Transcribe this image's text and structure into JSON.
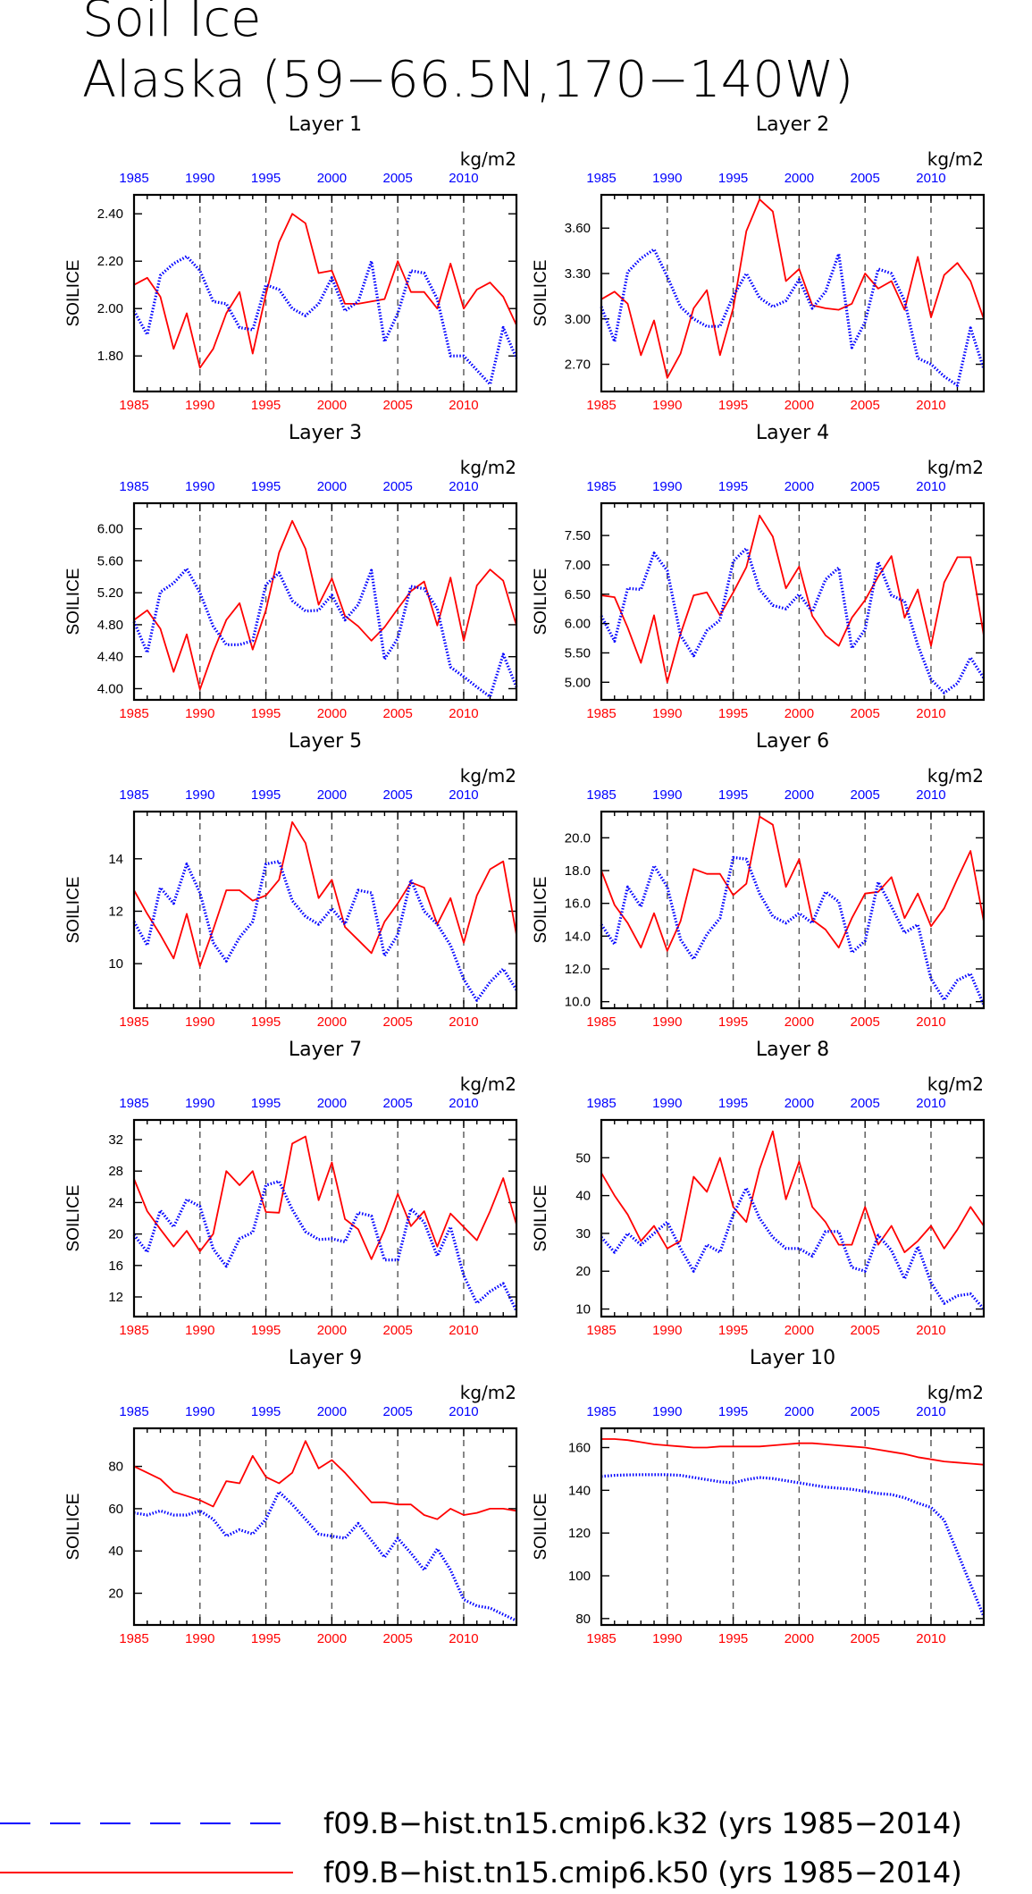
{
  "title_line1": "Soil Ice",
  "title_line2": "Alaska (59−66.5N,170−140W)",
  "colors": {
    "series_blue": "#0000ff",
    "series_red": "#ff0000",
    "axis": "#000000"
  },
  "legend": [
    {
      "label": "f09.B−hist.tn15.cmip6.k32 (yrs 1985−2014)",
      "color": "#0000ff",
      "style": "dashed"
    },
    {
      "label": "f09.B−hist.tn15.cmip6.k50 (yrs 1985−2014)",
      "color": "#ff0000",
      "style": "solid"
    }
  ],
  "chart_data": [
    {
      "type": "line",
      "title": "Layer 1",
      "ylabel": "SOILICE",
      "units": "kg/m2",
      "xlim": [
        1985,
        2014
      ],
      "ylim": [
        1.65,
        2.48
      ],
      "yticks": [
        "1.80",
        "2.00",
        "2.20",
        "2.40"
      ],
      "xticks": [
        "1985",
        "1990",
        "1995",
        "2000",
        "2005",
        "2010"
      ],
      "x_start": 1985,
      "series": [
        {
          "values": [
            1.99,
            1.89,
            2.14,
            2.19,
            2.22,
            2.16,
            2.03,
            2.02,
            1.92,
            1.91,
            2.1,
            2.08,
            2.0,
            1.97,
            2.02,
            2.13,
            1.99,
            2.03,
            2.2,
            1.86,
            1.98,
            2.16,
            2.15,
            2.04,
            1.8,
            1.8,
            1.74,
            1.68,
            1.92,
            1.79
          ]
        },
        {
          "values": [
            2.1,
            2.13,
            2.05,
            1.83,
            1.98,
            1.75,
            1.83,
            1.98,
            2.07,
            1.81,
            2.06,
            2.28,
            2.4,
            2.36,
            2.15,
            2.16,
            2.02,
            2.02,
            2.03,
            2.04,
            2.2,
            2.07,
            2.07,
            2.0,
            2.19,
            2.0,
            2.08,
            2.11,
            2.05,
            1.93
          ]
        }
      ]
    },
    {
      "type": "line",
      "title": "Layer 2",
      "ylabel": "SOILICE",
      "units": "kg/m2",
      "xlim": [
        1985,
        2014
      ],
      "ylim": [
        2.52,
        3.82
      ],
      "yticks": [
        "2.70",
        "3.00",
        "3.30",
        "3.60"
      ],
      "xticks": [
        "1985",
        "1990",
        "1995",
        "2000",
        "2005",
        "2010"
      ],
      "x_start": 1985,
      "series": [
        {
          "values": [
            3.08,
            2.85,
            3.31,
            3.4,
            3.46,
            3.28,
            3.08,
            3.0,
            2.95,
            2.95,
            3.15,
            3.3,
            3.14,
            3.08,
            3.12,
            3.26,
            3.07,
            3.18,
            3.43,
            2.81,
            2.98,
            3.33,
            3.3,
            3.12,
            2.74,
            2.7,
            2.62,
            2.56,
            2.94,
            2.67
          ]
        },
        {
          "values": [
            3.13,
            3.18,
            3.1,
            2.76,
            2.99,
            2.61,
            2.77,
            3.07,
            3.19,
            2.76,
            3.07,
            3.58,
            3.79,
            3.71,
            3.25,
            3.33,
            3.09,
            3.07,
            3.06,
            3.1,
            3.3,
            3.2,
            3.25,
            3.06,
            3.41,
            3.01,
            3.29,
            3.37,
            3.25,
            3.0
          ]
        }
      ]
    },
    {
      "type": "line",
      "title": "Layer 3",
      "ylabel": "SOILICE",
      "units": "kg/m2",
      "xlim": [
        1985,
        2014
      ],
      "ylim": [
        3.86,
        6.32
      ],
      "yticks": [
        "4.00",
        "4.40",
        "4.80",
        "5.20",
        "5.60",
        "6.00"
      ],
      "xticks": [
        "1985",
        "1990",
        "1995",
        "2000",
        "2005",
        "2010"
      ],
      "x_start": 1985,
      "series": [
        {
          "values": [
            4.84,
            4.45,
            5.21,
            5.32,
            5.5,
            5.2,
            4.78,
            4.55,
            4.55,
            4.6,
            5.3,
            5.45,
            5.1,
            4.97,
            4.98,
            5.17,
            4.86,
            5.05,
            5.48,
            4.37,
            4.63,
            5.28,
            5.25,
            5.0,
            4.27,
            4.15,
            4.02,
            3.9,
            4.43,
            4.02
          ]
        },
        {
          "values": [
            4.86,
            4.98,
            4.75,
            4.21,
            4.68,
            3.99,
            4.46,
            4.86,
            5.07,
            4.49,
            4.98,
            5.7,
            6.1,
            5.75,
            5.05,
            5.38,
            4.91,
            4.78,
            4.6,
            4.77,
            5.0,
            5.22,
            5.34,
            4.79,
            5.39,
            4.6,
            5.29,
            5.49,
            5.35,
            4.79
          ]
        }
      ]
    },
    {
      "type": "line",
      "title": "Layer 4",
      "ylabel": "SOILICE",
      "units": "kg/m2",
      "xlim": [
        1985,
        2014
      ],
      "ylim": [
        4.7,
        8.05
      ],
      "yticks": [
        "5.00",
        "5.50",
        "6.00",
        "6.50",
        "7.00",
        "7.50"
      ],
      "xticks": [
        "1985",
        "1990",
        "1995",
        "2000",
        "2005",
        "2010"
      ],
      "x_start": 1985,
      "series": [
        {
          "values": [
            6.13,
            5.7,
            6.6,
            6.58,
            7.2,
            6.9,
            5.8,
            5.45,
            5.88,
            6.06,
            7.06,
            7.28,
            6.58,
            6.31,
            6.25,
            6.5,
            6.2,
            6.75,
            6.95,
            5.58,
            5.9,
            7.05,
            6.48,
            6.38,
            5.63,
            5.05,
            4.82,
            4.98,
            5.42,
            5.07
          ]
        },
        {
          "values": [
            6.48,
            6.45,
            5.93,
            5.33,
            6.14,
            5.0,
            5.82,
            6.48,
            6.53,
            6.14,
            6.53,
            6.96,
            7.84,
            7.48,
            6.6,
            6.97,
            6.13,
            5.8,
            5.62,
            6.1,
            6.4,
            6.8,
            7.15,
            6.1,
            6.58,
            5.62,
            6.7,
            7.13,
            7.13,
            5.8
          ]
        }
      ]
    },
    {
      "type": "line",
      "title": "Layer 5",
      "ylabel": "SOILICE",
      "units": "kg/m2",
      "xlim": [
        1985,
        2014
      ],
      "ylim": [
        8.3,
        15.8
      ],
      "yticks": [
        "10",
        "12",
        "14"
      ],
      "xticks": [
        "1985",
        "1990",
        "1995",
        "2000",
        "2005",
        "2010"
      ],
      "x_start": 1985,
      "series": [
        {
          "values": [
            11.6,
            10.7,
            12.9,
            12.3,
            13.8,
            12.7,
            10.8,
            10.1,
            11.0,
            11.6,
            13.8,
            13.9,
            12.4,
            11.8,
            11.5,
            12.1,
            11.5,
            12.8,
            12.7,
            10.3,
            11.1,
            13.2,
            12.0,
            11.5,
            10.7,
            9.4,
            8.6,
            9.3,
            9.8,
            9.0
          ]
        },
        {
          "values": [
            12.8,
            11.9,
            11.1,
            10.2,
            11.9,
            9.9,
            11.3,
            12.8,
            12.8,
            12.4,
            12.6,
            13.2,
            15.4,
            14.6,
            12.5,
            13.2,
            11.4,
            10.9,
            10.4,
            11.6,
            12.3,
            13.1,
            12.9,
            11.5,
            12.5,
            10.8,
            12.6,
            13.6,
            13.9,
            11.1
          ]
        }
      ]
    },
    {
      "type": "line",
      "title": "Layer 6",
      "ylabel": "SOILICE",
      "units": "kg/m2",
      "xlim": [
        1985,
        2014
      ],
      "ylim": [
        9.6,
        21.6
      ],
      "yticks": [
        "10.0",
        "12.0",
        "14.0",
        "16.0",
        "18.0",
        "20.0"
      ],
      "xticks": [
        "1985",
        "1990",
        "1995",
        "2000",
        "2005",
        "2010"
      ],
      "x_start": 1985,
      "series": [
        {
          "values": [
            14.7,
            13.5,
            17.0,
            15.8,
            18.3,
            17.0,
            13.8,
            12.6,
            14.1,
            15.1,
            18.8,
            18.7,
            16.6,
            15.2,
            14.8,
            15.4,
            14.8,
            16.7,
            16.1,
            13.0,
            13.7,
            17.3,
            15.8,
            14.2,
            14.7,
            11.4,
            10.1,
            11.3,
            11.7,
            9.8
          ]
        },
        {
          "values": [
            18.0,
            15.9,
            14.8,
            13.3,
            15.4,
            13.1,
            14.9,
            18.1,
            17.8,
            17.8,
            16.5,
            17.2,
            21.3,
            20.8,
            17.0,
            18.7,
            15.0,
            14.4,
            13.3,
            15.1,
            16.6,
            16.7,
            17.6,
            15.1,
            16.6,
            14.6,
            15.7,
            17.5,
            19.2,
            14.9
          ]
        }
      ]
    },
    {
      "type": "line",
      "title": "Layer 7",
      "ylabel": "SOILICE",
      "units": "kg/m2",
      "xlim": [
        1985,
        2014
      ],
      "ylim": [
        9.5,
        34.5
      ],
      "yticks": [
        "12",
        "16",
        "20",
        "24",
        "28",
        "32"
      ],
      "xticks": [
        "1985",
        "1990",
        "1995",
        "2000",
        "2005",
        "2010"
      ],
      "x_start": 1985,
      "series": [
        {
          "values": [
            19.9,
            17.7,
            23.0,
            20.9,
            24.4,
            23.5,
            18.1,
            15.9,
            19.4,
            20.2,
            26.2,
            26.7,
            23.1,
            20.3,
            19.3,
            19.4,
            19.0,
            22.7,
            22.3,
            16.7,
            16.7,
            23.2,
            21.5,
            17.2,
            20.9,
            14.7,
            11.2,
            12.7,
            13.7,
            10.2
          ]
        },
        {
          "values": [
            27.0,
            22.9,
            20.6,
            18.4,
            20.4,
            17.8,
            20.0,
            28.0,
            26.2,
            28.0,
            22.8,
            22.7,
            31.5,
            32.4,
            24.3,
            29.1,
            21.9,
            20.6,
            16.8,
            20.5,
            25.1,
            21.0,
            22.9,
            18.4,
            22.6,
            20.9,
            19.2,
            22.9,
            27.1,
            21.2
          ]
        }
      ]
    },
    {
      "type": "line",
      "title": "Layer 8",
      "ylabel": "SOILICE",
      "units": "kg/m2",
      "xlim": [
        1985,
        2014
      ],
      "ylim": [
        8,
        60
      ],
      "yticks": [
        "10",
        "20",
        "30",
        "40",
        "50"
      ],
      "xticks": [
        "1985",
        "1990",
        "1995",
        "2000",
        "2005",
        "2010"
      ],
      "x_start": 1985,
      "series": [
        {
          "values": [
            29.0,
            25.0,
            30.0,
            27.0,
            30.0,
            33.0,
            26.0,
            20.0,
            27.0,
            25.0,
            35.0,
            42.0,
            34.0,
            29.0,
            26.0,
            26.0,
            24.0,
            30.5,
            30.5,
            21.0,
            20.0,
            29.5,
            25.5,
            18.0,
            26.5,
            17.0,
            11.5,
            13.5,
            14.0,
            10.0
          ]
        },
        {
          "values": [
            46.0,
            40.0,
            35.0,
            28.0,
            32.0,
            26.0,
            28.0,
            45.0,
            41.0,
            50.0,
            37.0,
            33.0,
            47.0,
            57.0,
            39.0,
            49.0,
            37.0,
            33.0,
            27.0,
            27.0,
            37.0,
            27.0,
            32.0,
            25.0,
            28.0,
            32.0,
            26.0,
            31.0,
            37.0,
            32.0
          ]
        }
      ]
    },
    {
      "type": "line",
      "title": "Layer 9",
      "ylabel": "SOILICE",
      "units": "kg/m2",
      "xlim": [
        1985,
        2014
      ],
      "ylim": [
        5,
        98
      ],
      "yticks": [
        "20",
        "40",
        "60",
        "80"
      ],
      "xticks": [
        "1985",
        "1990",
        "1995",
        "2000",
        "2005",
        "2010"
      ],
      "x_start": 1985,
      "series": [
        {
          "values": [
            58.0,
            57.0,
            59.0,
            57.0,
            57.0,
            59.0,
            55.0,
            47.0,
            50.0,
            48.0,
            55.0,
            68.0,
            62.0,
            55.0,
            48.0,
            47.0,
            46.0,
            53.0,
            45.0,
            37.0,
            46.0,
            39.0,
            31.0,
            41.0,
            31.0,
            17.0,
            14.0,
            13.0,
            10.0,
            7.0
          ]
        },
        {
          "values": [
            80.0,
            77.0,
            74.0,
            68.0,
            66.0,
            64.0,
            61.0,
            73.0,
            72.0,
            85.0,
            75.0,
            72.0,
            77.0,
            92.0,
            79.0,
            83.0,
            77.0,
            70.0,
            63.0,
            63.0,
            62.0,
            62.0,
            57.0,
            55.0,
            60.0,
            57.0,
            58.0,
            60.0,
            60.0,
            59.0
          ]
        }
      ]
    },
    {
      "type": "line",
      "title": "Layer 10",
      "ylabel": "SOILICE",
      "units": "kg/m2",
      "xlim": [
        1985,
        2014
      ],
      "ylim": [
        77,
        169
      ],
      "yticks": [
        "80",
        "100",
        "120",
        "140",
        "160"
      ],
      "xticks": [
        "1985",
        "1990",
        "1995",
        "2000",
        "2005",
        "2010"
      ],
      "x_start": 1985,
      "series": [
        {
          "values": [
            146.5,
            147.0,
            147.2,
            147.3,
            147.3,
            147.3,
            147.0,
            146.0,
            145.0,
            144.0,
            143.5,
            145.0,
            146.0,
            145.5,
            144.5,
            143.5,
            142.5,
            141.5,
            141.0,
            140.5,
            139.5,
            138.5,
            138.0,
            136.5,
            134.0,
            132.0,
            126.0,
            111.0,
            96.0,
            81.0
          ]
        },
        {
          "values": [
            164.0,
            164.0,
            163.5,
            162.5,
            161.5,
            161.0,
            160.5,
            160.0,
            160.0,
            160.5,
            160.5,
            160.5,
            160.5,
            161.0,
            161.5,
            162.0,
            162.0,
            161.5,
            161.0,
            160.5,
            160.0,
            159.0,
            158.0,
            157.0,
            155.5,
            154.5,
            153.5,
            153.0,
            152.5,
            152.0
          ]
        }
      ]
    }
  ]
}
